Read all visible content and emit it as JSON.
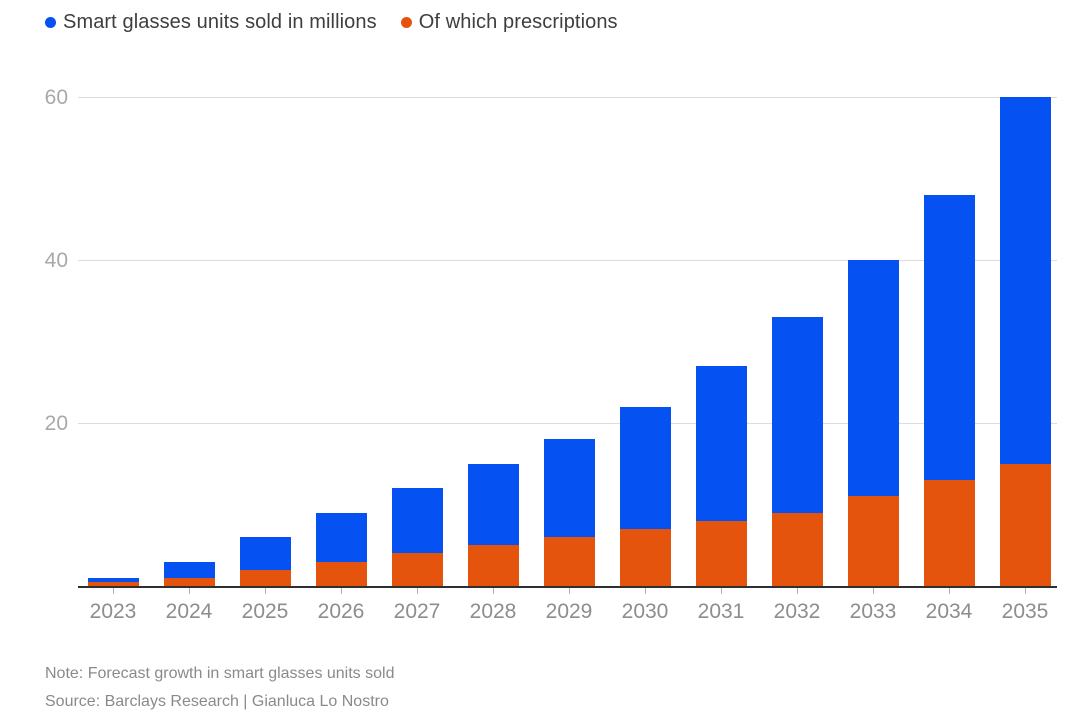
{
  "legend": {
    "items": [
      {
        "label": "Smart glasses units sold in millions",
        "color": "#0551f1"
      },
      {
        "label": "Of which prescriptions",
        "color": "#e4540d"
      }
    ]
  },
  "chart_data": {
    "type": "bar",
    "subtype": "overlay-stacked",
    "title": "",
    "xlabel": "",
    "ylabel": "",
    "categories": [
      "2023",
      "2024",
      "2025",
      "2026",
      "2027",
      "2028",
      "2029",
      "2030",
      "2031",
      "2032",
      "2033",
      "2034",
      "2035"
    ],
    "series": [
      {
        "name": "Smart glasses units sold in millions",
        "color": "#0551f1",
        "values": [
          1,
          3,
          6,
          9,
          12,
          15,
          18,
          22,
          27,
          33,
          40,
          48,
          60
        ]
      },
      {
        "name": "Of which prescriptions",
        "color": "#e4540d",
        "values": [
          0.5,
          1,
          2,
          3,
          4,
          5,
          6,
          7,
          8,
          9,
          11,
          13,
          15
        ]
      }
    ],
    "ylim": [
      0,
      60
    ],
    "y_ticks": [
      20,
      40,
      60
    ],
    "grid": true,
    "legend_position": "top-left",
    "gridline_color": "#dcdcdc",
    "axis_color": "#2f2f2f"
  },
  "footer": {
    "note": "Note: Forecast growth in smart glasses units sold",
    "source": "Source: Barclays Research | Gianluca Lo Nostro"
  }
}
